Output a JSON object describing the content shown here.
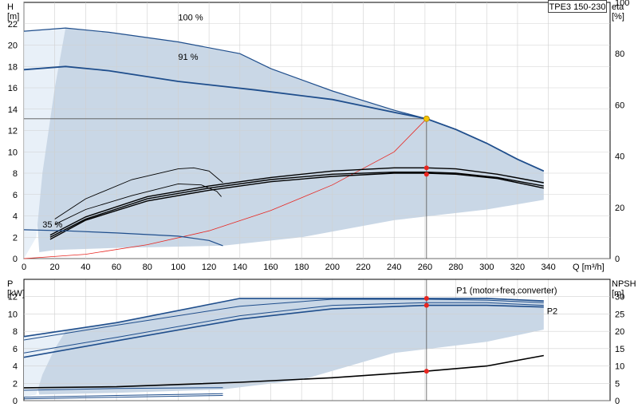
{
  "pump_label": "TPE3 150-230",
  "colors": {
    "envelope": "#c9d7e6",
    "envelope_light": "#e8f0f8",
    "curve": "#1f4e8c",
    "eta": "#000000",
    "system": "#e8251f",
    "duty_point": "#f5c400",
    "marker": "#e8251f",
    "grid": "#d0d0d0",
    "duty_line": "#555555"
  },
  "chart_data": [
    {
      "type": "line",
      "panel": "qh",
      "x_axis": {
        "unit": "Q [m³/h]",
        "min": 0,
        "max": 380,
        "ticks": [
          "0",
          "20",
          "40",
          "60",
          "80",
          "100",
          "120",
          "140",
          "160",
          "180",
          "200",
          "220",
          "240",
          "260",
          "280",
          "300",
          "320",
          "340"
        ]
      },
      "left_axis": {
        "label": "H",
        "unit": "[m]",
        "min": 0,
        "max": 24,
        "ticks": [
          "0",
          "2",
          "4",
          "6",
          "8",
          "10",
          "12",
          "14",
          "16",
          "18",
          "20",
          "22"
        ]
      },
      "right_axis": {
        "label": "eta",
        "unit": "[%]",
        "min": 0,
        "max": 100,
        "ticks": [
          "0",
          "20",
          "40",
          "60",
          "80",
          "100"
        ]
      },
      "series": [
        {
          "name": "100 %",
          "values": [
            [
              0,
              21.3
            ],
            [
              27,
              21.6
            ],
            [
              55,
              21.2
            ],
            [
              100,
              20.3
            ],
            [
              140,
              19.2
            ],
            [
              160,
              17.8
            ],
            [
              200,
              15.7
            ],
            [
              240,
              13.9
            ],
            [
              261,
              13.1
            ],
            [
              280,
              12.1
            ],
            [
              300,
              10.8
            ],
            [
              320,
              9.3
            ],
            [
              337,
              8.2
            ]
          ]
        },
        {
          "name": "91 %",
          "values": [
            [
              0,
              17.7
            ],
            [
              27,
              18.0
            ],
            [
              55,
              17.6
            ],
            [
              100,
              16.6
            ],
            [
              150,
              15.8
            ],
            [
              200,
              14.9
            ],
            [
              240,
              13.7
            ],
            [
              261,
              13.1
            ],
            [
              280,
              12.1
            ],
            [
              300,
              10.8
            ],
            [
              320,
              9.3
            ],
            [
              337,
              8.2
            ]
          ]
        },
        {
          "name": "35 %",
          "values": [
            [
              0,
              2.7
            ],
            [
              27,
              2.6
            ],
            [
              60,
              2.4
            ],
            [
              100,
              2.1
            ],
            [
              120,
              1.7
            ],
            [
              129,
              1.2
            ]
          ]
        }
      ],
      "eta_curves": [
        [
          [
            17,
            1.8
          ],
          [
            40,
            3.6
          ],
          [
            80,
            5.4
          ],
          [
            120,
            6.4
          ],
          [
            160,
            7.2
          ],
          [
            200,
            7.7
          ],
          [
            240,
            8.0
          ],
          [
            261,
            8.0
          ],
          [
            280,
            7.9
          ],
          [
            307,
            7.5
          ],
          [
            337,
            6.6
          ]
        ],
        [
          [
            17,
            2.0
          ],
          [
            40,
            3.7
          ],
          [
            80,
            5.6
          ],
          [
            120,
            6.6
          ],
          [
            160,
            7.4
          ],
          [
            200,
            7.9
          ],
          [
            240,
            8.1
          ],
          [
            261,
            8.1
          ],
          [
            280,
            8.0
          ],
          [
            307,
            7.6
          ],
          [
            337,
            6.8
          ]
        ],
        [
          [
            17,
            2.2
          ],
          [
            40,
            3.9
          ],
          [
            80,
            5.8
          ],
          [
            120,
            6.8
          ],
          [
            160,
            7.6
          ],
          [
            200,
            8.2
          ],
          [
            240,
            8.5
          ],
          [
            261,
            8.5
          ],
          [
            280,
            8.4
          ],
          [
            307,
            7.9
          ],
          [
            337,
            7.1
          ]
        ],
        [
          [
            20,
            3.2
          ],
          [
            40,
            4.6
          ],
          [
            70,
            5.9
          ],
          [
            100,
            7.0
          ],
          [
            115,
            6.9
          ],
          [
            125,
            6.3
          ],
          [
            128,
            5.8
          ]
        ],
        [
          [
            20,
            3.7
          ],
          [
            40,
            5.6
          ],
          [
            70,
            7.4
          ],
          [
            100,
            8.4
          ],
          [
            110,
            8.5
          ],
          [
            120,
            8.2
          ],
          [
            129,
            7.1
          ]
        ]
      ],
      "system_curve": [
        [
          0,
          0
        ],
        [
          40,
          0.4
        ],
        [
          80,
          1.3
        ],
        [
          120,
          2.6
        ],
        [
          160,
          4.5
        ],
        [
          200,
          6.9
        ],
        [
          240,
          10.0
        ],
        [
          261,
          13.1
        ]
      ],
      "duty_point": {
        "q": 261,
        "h": 13.1
      },
      "eta_markers": [
        [
          261,
          8.5
        ],
        [
          261,
          7.9
        ]
      ]
    },
    {
      "type": "line",
      "panel": "power",
      "x_axis": {
        "unit": "Q [m³/h]",
        "min": 0,
        "max": 380
      },
      "left_axis": {
        "label": "P",
        "unit": "[kW]",
        "min": 0,
        "max": 14,
        "ticks": [
          "0",
          "2",
          "4",
          "6",
          "8",
          "10",
          "12"
        ]
      },
      "right_axis": {
        "label": "NPSH",
        "unit": "[m]",
        "min": 0,
        "max": 35,
        "ticks": [
          "0",
          "5",
          "10",
          "15",
          "20",
          "25",
          "30"
        ]
      },
      "series": [
        {
          "name": "P1 (motor+freq.converter)",
          "values": [
            [
              0,
              7.4
            ],
            [
              60,
              9.0
            ],
            [
              140,
              11.8
            ],
            [
              200,
              11.8
            ],
            [
              261,
              11.8
            ],
            [
              300,
              11.8
            ],
            [
              337,
              11.5
            ]
          ]
        },
        {
          "name": "P2",
          "values": [
            [
              0,
              5.0
            ],
            [
              60,
              6.9
            ],
            [
              140,
              9.4
            ],
            [
              200,
              10.6
            ],
            [
              261,
              11.0
            ],
            [
              300,
              11.0
            ],
            [
              337,
              10.8
            ]
          ]
        }
      ],
      "extra_power_curves": [
        [
          [
            0,
            7.0
          ],
          [
            60,
            8.7
          ],
          [
            140,
            10.9
          ],
          [
            200,
            11.7
          ],
          [
            261,
            11.7
          ],
          [
            300,
            11.6
          ],
          [
            337,
            11.3
          ]
        ],
        [
          [
            0,
            5.5
          ],
          [
            60,
            7.3
          ],
          [
            140,
            9.8
          ],
          [
            200,
            11.0
          ],
          [
            261,
            11.3
          ],
          [
            300,
            11.3
          ],
          [
            337,
            11.0
          ]
        ],
        [
          [
            0,
            1.2
          ],
          [
            60,
            1.4
          ],
          [
            129,
            1.5
          ]
        ],
        [
          [
            0,
            0.4
          ],
          [
            60,
            0.6
          ],
          [
            129,
            0.8
          ]
        ],
        [
          [
            0,
            0.2
          ],
          [
            60,
            0.4
          ],
          [
            129,
            0.6
          ]
        ]
      ],
      "npsh_curve": [
        [
          0,
          3.7
        ],
        [
          60,
          4.0
        ],
        [
          140,
          5.3
        ],
        [
          200,
          6.6
        ],
        [
          261,
          8.5
        ],
        [
          300,
          10.0
        ],
        [
          337,
          13.0
        ]
      ],
      "markers": [
        [
          261,
          11.8
        ],
        [
          261,
          11.0
        ],
        [
          261,
          3.4
        ]
      ]
    }
  ]
}
